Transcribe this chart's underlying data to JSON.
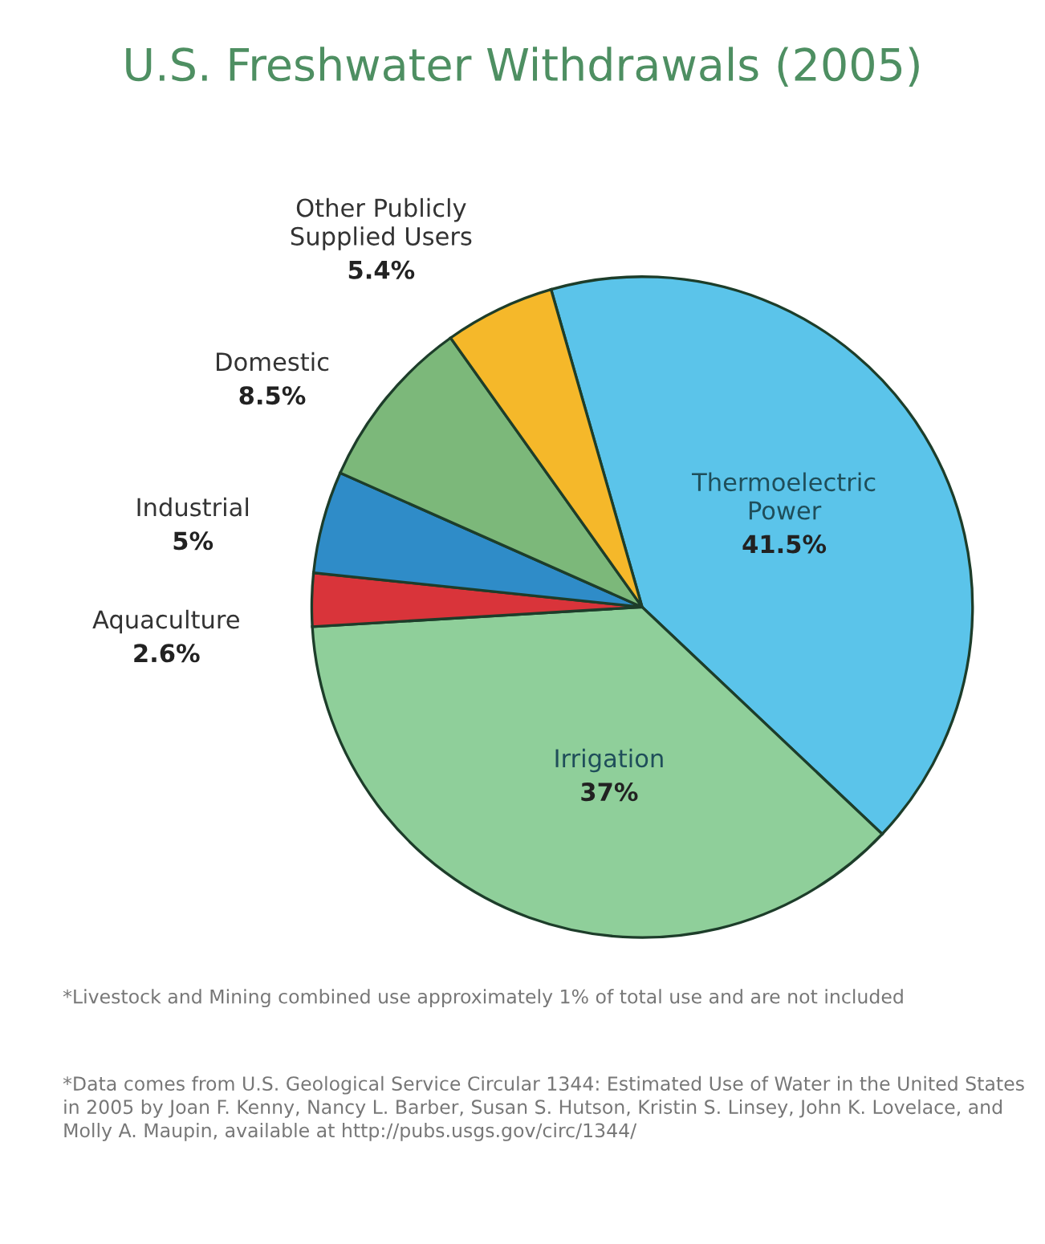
{
  "chart_data": {
    "type": "pie",
    "title": "U.S. Freshwater Withdrawals (2005)",
    "categories": [
      "Thermoelectric\nPower",
      "Irrigation",
      "Aquaculture",
      "Industrial",
      "Domestic",
      "Other Publicly\nSupplied Users"
    ],
    "values": [
      41.5,
      37,
      2.6,
      5,
      8.5,
      5.4
    ],
    "value_labels": [
      "41.5%",
      "37%",
      "2.6%",
      "5%",
      "8.5%",
      "5.4%"
    ],
    "colors": [
      "#5bc4ea",
      "#8fcf9a",
      "#d9343a",
      "#2f8cc8",
      "#7cb87a",
      "#f5b82a"
    ],
    "annotations": [
      "*Livestock and Mining combined use approximately 1% of total use and are not included",
      "*Data comes from U.S. Geological Service Circular 1344: Estimated Use of Water in the United States in 2005 by Joan F. Kenny, Nancy L. Barber, Susan S. Hutson, Kristin S. Linsey, John K. Lovelace, and Molly A. Maupin, available at http://pubs.usgs.gov/circ/1344/"
    ]
  }
}
